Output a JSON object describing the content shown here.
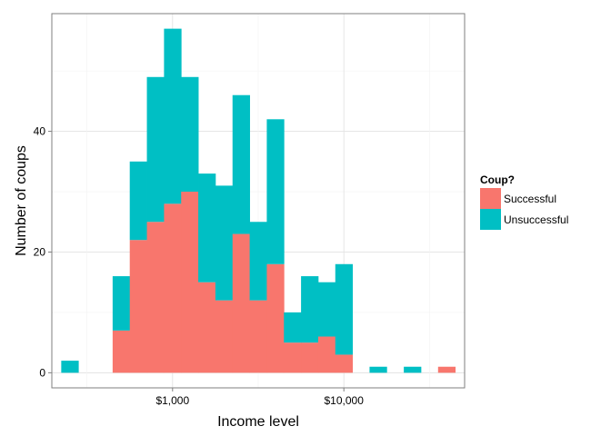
{
  "chart_data": {
    "type": "bar",
    "stacked": true,
    "x_scale": "log10",
    "xlabel": "Income level",
    "ylabel": "Number of coups",
    "x_ticks": [
      {
        "value": 1000,
        "label": "$1,000"
      },
      {
        "value": 10000,
        "label": "$10,000"
      }
    ],
    "y_ticks": [
      0,
      20,
      40
    ],
    "ylim": [
      -2.5,
      59.5
    ],
    "xlim_log10": [
      2.535,
      3.77
    ],
    "bin_width_log10": 0.1,
    "bin_starts_log10": [
      2.35,
      2.45,
      2.55,
      2.65,
      2.75,
      2.85,
      2.95,
      3.05,
      3.15,
      3.25,
      3.35,
      3.45,
      3.55,
      3.65,
      3.75,
      3.85,
      3.95,
      4.05,
      4.15,
      4.25,
      4.35,
      4.45,
      4.55
    ],
    "series": [
      {
        "name": "Successful",
        "color": "#F8766D",
        "values": [
          0,
          0,
          0,
          7,
          22,
          25,
          28,
          30,
          15,
          12,
          23,
          12,
          18,
          5,
          5,
          6,
          3,
          0,
          0,
          0,
          0,
          0,
          1
        ]
      },
      {
        "name": "Unsuccessful",
        "color": "#00BFC4",
        "values": [
          2,
          0,
          0,
          9,
          13,
          24,
          29,
          19,
          18,
          19,
          23,
          13,
          24,
          5,
          11,
          9,
          15,
          0,
          1,
          0,
          1,
          0,
          0
        ]
      }
    ],
    "legend": {
      "title": "Coup?",
      "placement": "right"
    },
    "grid": true
  }
}
